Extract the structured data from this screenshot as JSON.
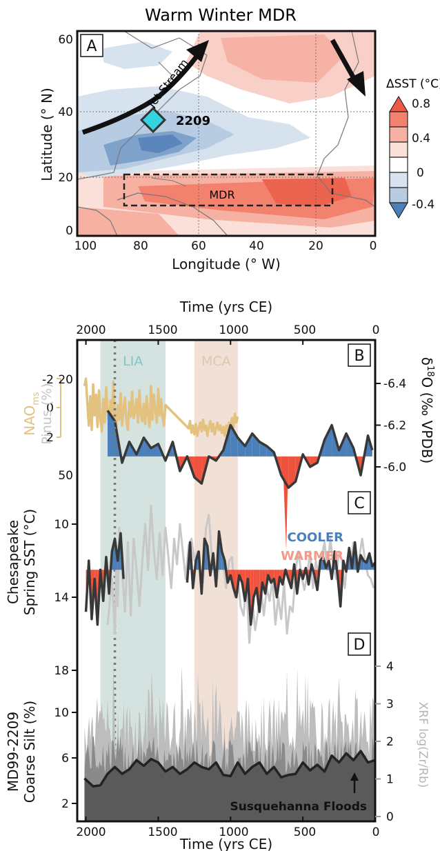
{
  "colors": {
    "cool": "#4a7fba",
    "warm": "#f0533d",
    "dark_line": "#383838",
    "nao": "#e2c27e",
    "grey_line": "#c8c8c8",
    "lia_band": "#c5d8d6",
    "mca_band": "#ecd6c8",
    "lia_text": "#7fc6cc",
    "mca_text": "#e3c4ad",
    "marker": "#33d3e0",
    "silt_fill": "#5a5a5a",
    "xrf_light": "#bdbdbd",
    "cooler_text": "#4a7fba",
    "warmer_text": "#f59a8a"
  },
  "map": {
    "title": "Warm Winter MDR",
    "panel": "A",
    "xlabel": "Longitude (° W)",
    "ylabel": "Latitude (° N)",
    "xticks": [
      "100",
      "80",
      "60",
      "40",
      "20",
      "0"
    ],
    "yticks": [
      "60",
      "40",
      "20",
      "0"
    ],
    "site_label": "2209",
    "jet_label": "Jet Stream",
    "mdr_label": "MDR",
    "colorbar_title": "ΔSST (°C)",
    "colorbar_ticks": [
      "0.8",
      "0.4",
      "0",
      "-0.4"
    ]
  },
  "timeseries": {
    "top_xlabel": "Time (yrs CE)",
    "bottom_xlabel": "Time (yrs CE)",
    "xticks": [
      "2000",
      "1500",
      "1000",
      "500",
      "0"
    ],
    "periods": [
      {
        "name": "LIA",
        "start": 1900,
        "end": 1450
      },
      {
        "name": "MCA",
        "start": 1250,
        "end": 950
      }
    ],
    "dotted_line_year": 1800,
    "cooler_label": "COOLER",
    "warmer_label": "WARMER",
    "floods_label": "Susquehanna Floods"
  },
  "chart_data": [
    {
      "type": "area",
      "panel": "B",
      "left_axis_label_nao": "NAO",
      "left_axis_label_nao_sub": "ms",
      "left_axis_label_pinus": "Pinus (%)",
      "right_axis_label": "δ18O (‰ VPDB)",
      "right_axis_label_main": "δ",
      "right_axis_label_sup": "18",
      "right_axis_label_rest": "O (‰ VPDB)",
      "nao_ticks": [
        "-2",
        "0",
        "2"
      ],
      "pinus_ticks": [
        "20",
        "50"
      ],
      "d18o_ticks": [
        "-6.4",
        "-6.2",
        "-6.0"
      ],
      "d18o_ylim": [
        -6.5,
        -5.85
      ],
      "baseline": -6.05,
      "d18o": {
        "x": [
          1850,
          1800,
          1750,
          1700,
          1650,
          1600,
          1550,
          1500,
          1450,
          1400,
          1350,
          1300,
          1250,
          1200,
          1150,
          1100,
          1050,
          1000,
          950,
          900,
          850,
          800,
          750,
          700,
          650,
          600,
          550,
          500,
          450,
          400,
          350,
          300,
          250,
          200,
          150,
          100,
          50,
          20
        ],
        "y": [
          -6.27,
          -6.22,
          -6.02,
          -6.12,
          -6.06,
          -6.14,
          -6.09,
          -6.11,
          -6.03,
          -6.12,
          -5.98,
          -6.05,
          -5.95,
          -5.92,
          -6.05,
          -6.03,
          -6.08,
          -6.2,
          -6.14,
          -6.1,
          -6.16,
          -6.12,
          -6.1,
          -6.07,
          -5.96,
          -5.9,
          -5.93,
          -6.06,
          -6.0,
          -6.02,
          -6.13,
          -6.2,
          -6.08,
          -6.16,
          -6.09,
          -5.96,
          -6.15,
          -6.08
        ]
      },
      "nao": {
        "x": [
          2010,
          2000,
          1990,
          1980,
          1970,
          1960,
          1950,
          1940,
          1930,
          1920,
          1910,
          1900,
          1890,
          1880,
          1870,
          1860,
          1850,
          1840,
          1830,
          1820,
          1810,
          1800,
          1790,
          1780,
          1770,
          1760,
          1750,
          1740,
          1730,
          1720,
          1710,
          1700,
          1690,
          1680,
          1670,
          1660,
          1650,
          1640,
          1630,
          1620,
          1610,
          1600,
          1590,
          1580,
          1570,
          1560,
          1550,
          1540,
          1530,
          1520,
          1510,
          1500,
          1490,
          1480,
          1470,
          1460,
          1450,
          1290,
          1280,
          1270,
          1260,
          1250,
          1240,
          1230,
          1220,
          1210,
          1200,
          1190,
          1180,
          1170,
          1160,
          1150,
          1140,
          1130,
          1120,
          1110,
          1100,
          1090,
          1080,
          1070,
          1060,
          1050,
          1040,
          1030,
          1020,
          1010,
          1000,
          990,
          980,
          970,
          960,
          950
        ],
        "y": [
          -1.5,
          -2.0,
          -0.3,
          1.2,
          -0.8,
          1.5,
          -1.6,
          0.5,
          -0.9,
          1.3,
          -1.2,
          0.8,
          1.6,
          -0.6,
          1.0,
          -1.4,
          0.3,
          1.1,
          -0.5,
          0.9,
          -1.8,
          0.6,
          1.4,
          -0.2,
          0.8,
          -1.0,
          1.2,
          0.1,
          -0.7,
          0.9,
          1.5,
          -0.4,
          0.6,
          -1.1,
          0.7,
          0.2,
          -0.6,
          1.0,
          -1.2,
          0.5,
          0.9,
          -0.3,
          1.1,
          -0.8,
          0.4,
          1.3,
          -1.5,
          0.8,
          -0.9,
          0.2,
          1.0,
          -1.3,
          0.5,
          -0.6,
          0.7,
          1.2,
          -0.2,
          1.4,
          0.9,
          1.7,
          1.2,
          1.8,
          1.1,
          1.9,
          1.4,
          1.0,
          1.6,
          0.8,
          1.5,
          1.2,
          1.9,
          1.3,
          0.9,
          1.6,
          1.1,
          1.8,
          1.4,
          1.0,
          1.5,
          1.2,
          1.7,
          1.3,
          1.9,
          1.2,
          1.6,
          1.0,
          1.4,
          0.7,
          1.3,
          0.4,
          1.0,
          0.6
        ]
      }
    },
    {
      "type": "area",
      "panel": "C",
      "ylabel_line1": "Chesapeake",
      "ylabel_line2": "Spring SST (°C)",
      "yticks": [
        "10",
        "14",
        "18"
      ],
      "ylim": [
        8,
        18
      ],
      "baseline": 12.5,
      "sst": {
        "x": [
          2000,
          1980,
          1960,
          1940,
          1920,
          1900,
          1880,
          1860,
          1840,
          1820,
          1800,
          1780,
          1760,
          1740,
          1300,
          1280,
          1260,
          1240,
          1220,
          1200,
          1180,
          1160,
          1140,
          1120,
          1100,
          1080,
          1060,
          1040,
          1020,
          1000,
          980,
          960,
          940,
          920,
          900,
          880,
          860,
          840,
          820,
          800,
          780,
          760,
          740,
          720,
          700,
          680,
          660,
          640,
          620,
          600,
          580,
          560,
          540,
          520,
          500,
          480,
          460,
          440,
          420,
          400,
          380,
          360,
          340,
          320,
          300,
          280,
          260,
          240,
          220,
          200,
          180,
          160,
          140,
          120,
          100,
          80,
          60,
          40,
          20,
          0
        ],
        "y": [
          14.8,
          12.0,
          15.2,
          13.0,
          15.5,
          12.5,
          14.2,
          11.8,
          13.8,
          11.5,
          10.8,
          12.0,
          10.5,
          13.0,
          13.2,
          11.0,
          13.5,
          12.0,
          11.5,
          13.8,
          10.8,
          11.2,
          12.8,
          11.6,
          13.4,
          10.4,
          11.5,
          12.0,
          13.2,
          12.8,
          13.5,
          14.0,
          12.8,
          13.2,
          14.2,
          13.0,
          15.5,
          14.0,
          13.5,
          14.8,
          13.2,
          13.8,
          12.8,
          13.2,
          13.0,
          14.0,
          12.9,
          13.3,
          12.5,
          13.0,
          13.5,
          12.2,
          13.8,
          12.5,
          13.0,
          12.4,
          13.3,
          12.2,
          12.8,
          13.6,
          12.0,
          11.8,
          12.4,
          12.0,
          13.0,
          11.5,
          12.8,
          14.5,
          12.0,
          12.6,
          11.3,
          12.4,
          11.0,
          12.6,
          11.7,
          12.0,
          12.1,
          11.6,
          12.3,
          12.1
        ]
      },
      "grey": {
        "x": [
          1850,
          1820,
          1800,
          1790,
          1780,
          1770,
          1750,
          1730,
          1710,
          1690,
          1670,
          1650,
          1630,
          1610,
          1590,
          1570,
          1550,
          1530,
          1510,
          1490,
          1470,
          1450,
          1430,
          1410,
          1390,
          1370,
          1350,
          1330,
          1310,
          1290,
          1270,
          1250,
          1230,
          1210,
          1190,
          1170,
          1150,
          1130,
          1110,
          1090,
          1070,
          1050,
          1030,
          1010,
          990,
          970,
          950,
          930,
          910,
          890,
          870,
          850,
          830,
          810,
          790,
          770,
          750,
          730,
          710,
          690,
          670,
          650,
          630,
          610,
          590,
          570,
          550,
          530,
          510,
          490,
          470,
          450,
          430,
          410,
          390,
          370,
          350,
          330,
          310,
          290,
          270,
          250,
          230,
          210,
          190,
          170,
          150,
          130,
          110,
          90,
          70,
          50,
          30,
          10
        ],
        "y": [
          15.5,
          13.0,
          16.0,
          12.0,
          14.5,
          10.2,
          12.5,
          14.8,
          11.0,
          15.0,
          10.8,
          12.5,
          14.5,
          12.0,
          10.0,
          12.5,
          9.0,
          11.5,
          13.0,
          10.5,
          12.8,
          10.2,
          11.8,
          13.5,
          10.8,
          12.2,
          10.0,
          11.5,
          13.0,
          11.2,
          10.8,
          12.0,
          11.5,
          12.8,
          13.2,
          10.2,
          9.5,
          11.8,
          12.5,
          13.0,
          11.0,
          12.2,
          13.5,
          12.0,
          11.8,
          14.0,
          13.0,
          14.5,
          15.0,
          13.2,
          16.5,
          14.2,
          15.8,
          14.8,
          13.5,
          15.0,
          13.5,
          14.2,
          13.0,
          15.5,
          14.0,
          15.2,
          13.2,
          16.0,
          14.5,
          14.8,
          12.5,
          11.5,
          12.8,
          13.6,
          12.8,
          11.5,
          13.5,
          12.0,
          12.8,
          11.8,
          11.0,
          12.5,
          10.8,
          12.2,
          13.0,
          11.5,
          12.0,
          13.5,
          11.8,
          12.2,
          11.0,
          12.5,
          11.8,
          10.8,
          12.0,
          12.8,
          13.0,
          13.5
        ]
      }
    },
    {
      "type": "area",
      "panel": "D",
      "ylabel_line1": "MD99-2209",
      "ylabel_line2": "Coarse Silt (%)",
      "right_axis_label": "XRF log(Zr/Rb)",
      "yticks": [
        "10",
        "6",
        "2"
      ],
      "ylim": [
        0,
        12
      ],
      "right_ticks": [
        "4",
        "3",
        "2",
        "1",
        "0"
      ],
      "right_ylim": [
        0,
        4.5
      ],
      "smooth": {
        "x": [
          2010,
          1950,
          1900,
          1850,
          1800,
          1750,
          1700,
          1650,
          1600,
          1550,
          1500,
          1450,
          1400,
          1350,
          1300,
          1250,
          1200,
          1150,
          1100,
          1050,
          1000,
          950,
          900,
          850,
          800,
          750,
          700,
          650,
          600,
          550,
          500,
          450,
          400,
          350,
          300,
          250,
          200,
          150,
          100,
          50,
          0
        ],
        "y": [
          4.2,
          3.5,
          3.6,
          4.6,
          5.2,
          4.6,
          5.0,
          5.8,
          5.3,
          5.9,
          5.6,
          4.8,
          5.2,
          4.6,
          5.0,
          5.6,
          5.2,
          5.0,
          5.6,
          4.5,
          4.4,
          5.6,
          4.6,
          5.2,
          5.6,
          4.6,
          5.2,
          4.3,
          4.5,
          4.6,
          5.6,
          4.9,
          5.4,
          4.8,
          6.2,
          5.6,
          6.4,
          5.8,
          6.6,
          5.6,
          5.8
        ]
      }
    }
  ]
}
